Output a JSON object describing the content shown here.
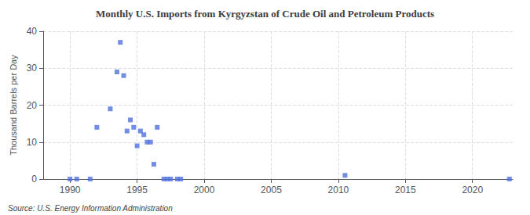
{
  "chart_data": {
    "type": "scatter",
    "title": "Monthly U.S. Imports from Kyrgyzstan of Crude Oil and Petroleum Products",
    "ylabel": "Thousand Barrels per Day",
    "annotations": [
      "Source: U.S. Energy Information Administration"
    ],
    "marker": "square",
    "grid": true,
    "xlim": [
      1988,
      2023
    ],
    "xticks": [
      1990,
      1995,
      2000,
      2005,
      2010,
      2015,
      2020
    ],
    "ylim": [
      0,
      40
    ],
    "yticks": [
      0,
      10,
      20,
      30,
      40
    ],
    "x": [
      1993.0,
      1993.5,
      1993.75,
      1994.0,
      1994.25,
      1994.5,
      1994.75,
      1995.0,
      1995.25,
      1995.5,
      1995.75,
      1996.0,
      1996.25,
      1996.5,
      1997.0,
      1997.25,
      1997.5,
      1998.0,
      1998.25,
      1990.0,
      1990.5,
      1991.5,
      1992.0,
      2010.5,
      2022.75
    ],
    "values": [
      19,
      29,
      37,
      28,
      13,
      16,
      14,
      9,
      13,
      12,
      10,
      10,
      4,
      14,
      0,
      0,
      0,
      0,
      0,
      0,
      0,
      0,
      14,
      1,
      0
    ]
  }
}
